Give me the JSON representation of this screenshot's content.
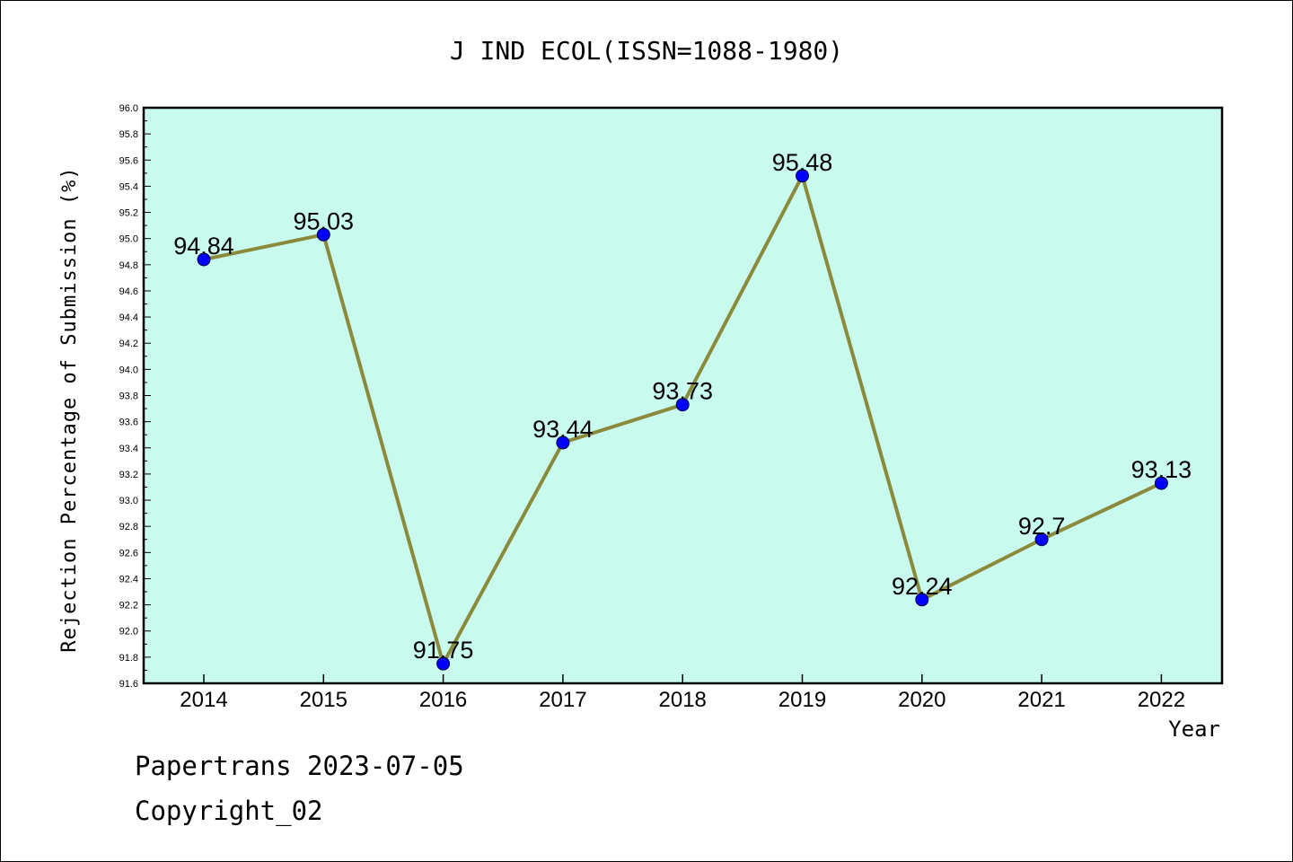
{
  "chart_data": {
    "type": "line",
    "title": "J IND ECOL(ISSN=1088-1980)",
    "xlabel": "Year",
    "ylabel": "Rejection Percentage of Submission (%)",
    "categories": [
      "2014",
      "2015",
      "2016",
      "2017",
      "2018",
      "2019",
      "2020",
      "2021",
      "2022"
    ],
    "values": [
      94.84,
      95.03,
      91.75,
      93.44,
      93.73,
      95.48,
      92.24,
      92.7,
      93.13
    ],
    "data_labels": [
      "94.84",
      "95.03",
      "91.75",
      "93.44",
      "93.73",
      "95.48",
      "92.24",
      "92.7",
      "93.13"
    ],
    "ylim": [
      91.6,
      96.0
    ],
    "yticks": [
      "91.6",
      "91.8",
      "92.0",
      "92.2",
      "92.4",
      "92.6",
      "92.8",
      "93.0",
      "93.2",
      "93.4",
      "93.6",
      "93.8",
      "94.0",
      "94.2",
      "94.4",
      "94.6",
      "94.8",
      "95.0",
      "95.2",
      "95.4",
      "95.6",
      "95.8",
      "96.0"
    ],
    "grid": false,
    "colors": {
      "plot_background": "#c8fbee",
      "line": "#8b8a3c",
      "marker": "#0000ff"
    }
  },
  "footer": {
    "line1": "Papertrans 2023-07-05",
    "line2": "Copyright_02"
  }
}
